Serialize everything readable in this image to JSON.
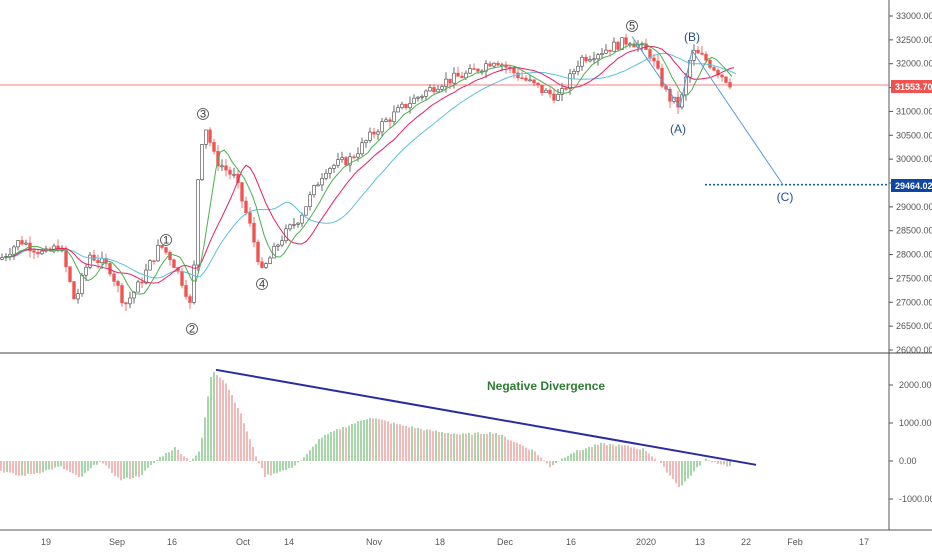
{
  "chart_data": {
    "type": "candlestick+histogram",
    "price_panel": {
      "y_ticks": [
        "33000.00",
        "32500.00",
        "32000.00",
        "31500.00",
        "31000.00",
        "30500.00",
        "30000.00",
        "29500.00",
        "29000.00",
        "28500.00",
        "28000.00",
        "27500.00",
        "27000.00",
        "26500.00",
        "26000.00"
      ],
      "current_price": "31553.70",
      "target_price": "29464.02",
      "wave_labels": [
        "1",
        "2",
        "3",
        "4",
        "5",
        "(A)",
        "(B)",
        "(C)"
      ],
      "wave_points": [
        {
          "label": "1",
          "date": "Sep 12",
          "value": 28180
        },
        {
          "label": "2",
          "date": "Sep 19",
          "value": 26780
        },
        {
          "label": "3",
          "date": "Sep 20",
          "value": 30800
        },
        {
          "label": "4",
          "date": "Oct 11",
          "value": 27620
        },
        {
          "label": "5",
          "date": "Dec 20",
          "value": 32570
        },
        {
          "label": "(A)",
          "date": "Jan 8",
          "value": 31090
        },
        {
          "label": "(B)",
          "date": "Jan 13",
          "value": 32280
        },
        {
          "label": "(C)",
          "date": "Jan 25",
          "value": 29464
        }
      ],
      "ma_colors": {
        "fast": "#4caf50",
        "medium": "#e91e63",
        "slow": "#5bc0de"
      },
      "candle_up_color": "#26a69a",
      "candle_down_color": "#ef5350"
    },
    "oscillator_panel": {
      "y_ticks": [
        "2000.00",
        "1000.00",
        "0.00",
        "-1000.00"
      ],
      "annotation": "Negative Divergence",
      "divergence_line": {
        "start": {
          "date": "Sep 20",
          "value": 2400
        },
        "end": {
          "date": "Jan 22",
          "value": -100
        },
        "color": "#2b2ba0"
      },
      "histogram_pos_color": "#4caf50",
      "histogram_neg_color": "#e57373"
    },
    "x_ticks": [
      "19",
      "Sep",
      "16",
      "Oct",
      "14",
      "Nov",
      "18",
      "Dec",
      "16",
      "2020",
      "13",
      "22",
      "Feb",
      "17"
    ]
  }
}
